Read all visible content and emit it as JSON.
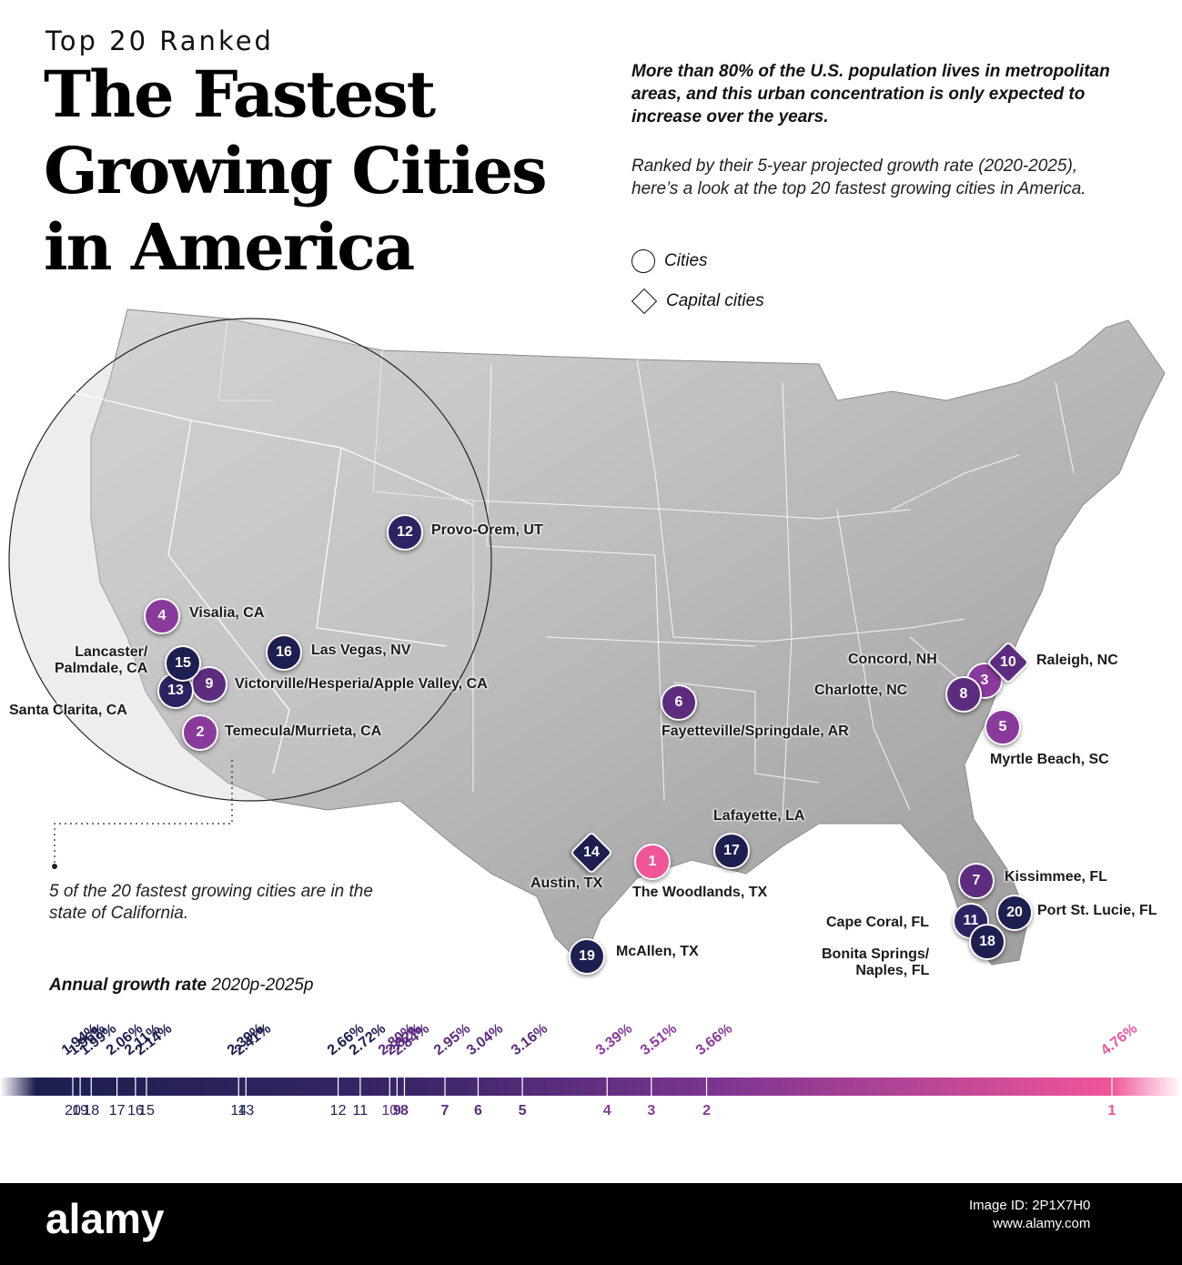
{
  "header": {
    "eyebrow": "Top 20 Ranked",
    "title_lines": [
      "The Fastest",
      "Growing Cities",
      "in America"
    ],
    "intro": "More than 80% of the U.S. population lives in metropolitan areas, and this urban concentration is only expected to increase over the years.",
    "subtitle": "Ranked by their 5-year projected growth rate (2020-2025), here’s a look at the top 20 fastest growing cities in America."
  },
  "legend": {
    "cities": "Cities",
    "capital_cities": "Capital cities"
  },
  "colors": {
    "navy": "#1c1f4f",
    "indigo": "#2d2363",
    "purple": "#5d2c7f",
    "violet": "#8a3a9c",
    "pink": "#f0559a"
  },
  "california_note": "5 of the 20 fastest growing cities are in the state of California.",
  "markers": [
    {
      "rank": "1",
      "label": "The Woodlands, TX",
      "type": "city"
    },
    {
      "rank": "2",
      "label": "Temecula/Murrieta, CA",
      "type": "city"
    },
    {
      "rank": "3",
      "label": "Concord, NH",
      "type": "city"
    },
    {
      "rank": "4",
      "label": "Visalia, CA",
      "type": "city"
    },
    {
      "rank": "5",
      "label": "Myrtle Beach, SC",
      "type": "city"
    },
    {
      "rank": "6",
      "label": "Fayetteville/Springdale, AR",
      "type": "city"
    },
    {
      "rank": "7",
      "label": "Kissimmee, FL",
      "type": "city"
    },
    {
      "rank": "8",
      "label": "Charlotte, NC",
      "type": "city"
    },
    {
      "rank": "9",
      "label": "Victorville/Hesperia/Apple Valley, CA",
      "type": "city"
    },
    {
      "rank": "10",
      "label": "Raleigh, NC",
      "type": "capital"
    },
    {
      "rank": "11",
      "label": "Cape Coral, FL",
      "type": "city"
    },
    {
      "rank": "12",
      "label": "Provo-Orem, UT",
      "type": "city"
    },
    {
      "rank": "13",
      "label": "Santa Clarita, CA",
      "type": "city"
    },
    {
      "rank": "14",
      "label": "Austin, TX",
      "type": "capital"
    },
    {
      "rank": "15",
      "label": "Lancaster/\nPalmdale, CA",
      "type": "city"
    },
    {
      "rank": "16",
      "label": "Las Vegas, NV",
      "type": "city"
    },
    {
      "rank": "17",
      "label": "Lafayette, LA",
      "type": "city"
    },
    {
      "rank": "18",
      "label": "Bonita Springs/\nNaples, FL",
      "type": "city"
    },
    {
      "rank": "19",
      "label": "McAllen, TX",
      "type": "city"
    },
    {
      "rank": "20",
      "label": "Port St. Lucie, FL",
      "type": "city"
    }
  ],
  "chart_data": {
    "type": "scatter",
    "title": "Annual growth rate",
    "title_suffix": "2020p-2025p",
    "points": [
      {
        "rank": "20",
        "value": 1.94,
        "label": "1.94%"
      },
      {
        "rank": "19",
        "value": 1.96,
        "label": "1.96%"
      },
      {
        "rank": "18",
        "value": 1.99,
        "label": "1.99%"
      },
      {
        "rank": "17",
        "value": 2.06,
        "label": "2.06%"
      },
      {
        "rank": "16",
        "value": 2.11,
        "label": "2.11%"
      },
      {
        "rank": "15",
        "value": 2.14,
        "label": "2.14%"
      },
      {
        "rank": "14",
        "value": 2.39,
        "label": "2.39%"
      },
      {
        "rank": "13",
        "value": 2.41,
        "label": "2.41%"
      },
      {
        "rank": "12",
        "value": 2.66,
        "label": "2.66%"
      },
      {
        "rank": "11",
        "value": 2.72,
        "label": "2.72%"
      },
      {
        "rank": "10",
        "value": 2.8,
        "label": "2.80%"
      },
      {
        "rank": "9",
        "value": 2.82,
        "label": "2.82%"
      },
      {
        "rank": "8",
        "value": 2.84,
        "label": "2.84%"
      },
      {
        "rank": "7",
        "value": 2.95,
        "label": "2.95%"
      },
      {
        "rank": "6",
        "value": 3.04,
        "label": "3.04%"
      },
      {
        "rank": "5",
        "value": 3.16,
        "label": "3.16%"
      },
      {
        "rank": "4",
        "value": 3.39,
        "label": "3.39%"
      },
      {
        "rank": "3",
        "value": 3.51,
        "label": "3.51%"
      },
      {
        "rank": "2",
        "value": 3.66,
        "label": "3.66%"
      },
      {
        "rank": "1",
        "value": 4.76,
        "label": "4.76%"
      }
    ]
  },
  "footer": {
    "brand": "alamy",
    "image_id": "Image ID: 2P1X7H0",
    "site": "www.alamy.com"
  }
}
